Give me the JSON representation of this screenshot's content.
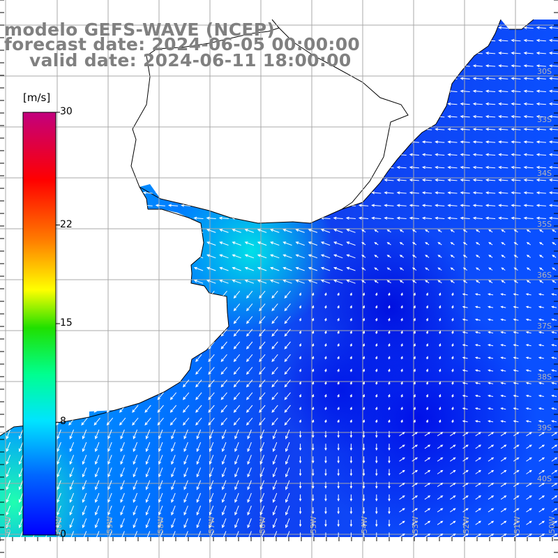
{
  "title": {
    "line1": "modelo GEFS-WAVE (NCEP)",
    "line2": "forecast date: 2024-06-05 00:00:00",
    "line3": "valid date: 2024-06-11 18:00:00"
  },
  "colorbar": {
    "unit": "[m/s]",
    "ticks": [
      {
        "value": 30,
        "label": "30"
      },
      {
        "value": 22,
        "label": "22"
      },
      {
        "value": 15,
        "label": "15"
      },
      {
        "value": 8,
        "label": "8"
      },
      {
        "value": 0,
        "label": "0"
      }
    ],
    "range": [
      0,
      30
    ],
    "colors": [
      "#0000ff",
      "#0077ff",
      "#00e8ff",
      "#00ff40",
      "#f0ff00",
      "#ff8000",
      "#ff0000",
      "#c0007a"
    ]
  },
  "map": {
    "lat_labels": [
      "30S",
      "33S",
      "34S",
      "35S",
      "36S",
      "37S",
      "38S",
      "39S",
      "40S"
    ],
    "lon_labels": [
      "61W",
      "60W",
      "59W",
      "58W",
      "57W",
      "56W",
      "55W",
      "54W",
      "53W",
      "52W",
      "51W",
      "50W"
    ],
    "ocean_color": "#0a50ff",
    "land_color": "#ffffff",
    "grid_color": "#b4b4b4",
    "coast_color": "#000000"
  }
}
